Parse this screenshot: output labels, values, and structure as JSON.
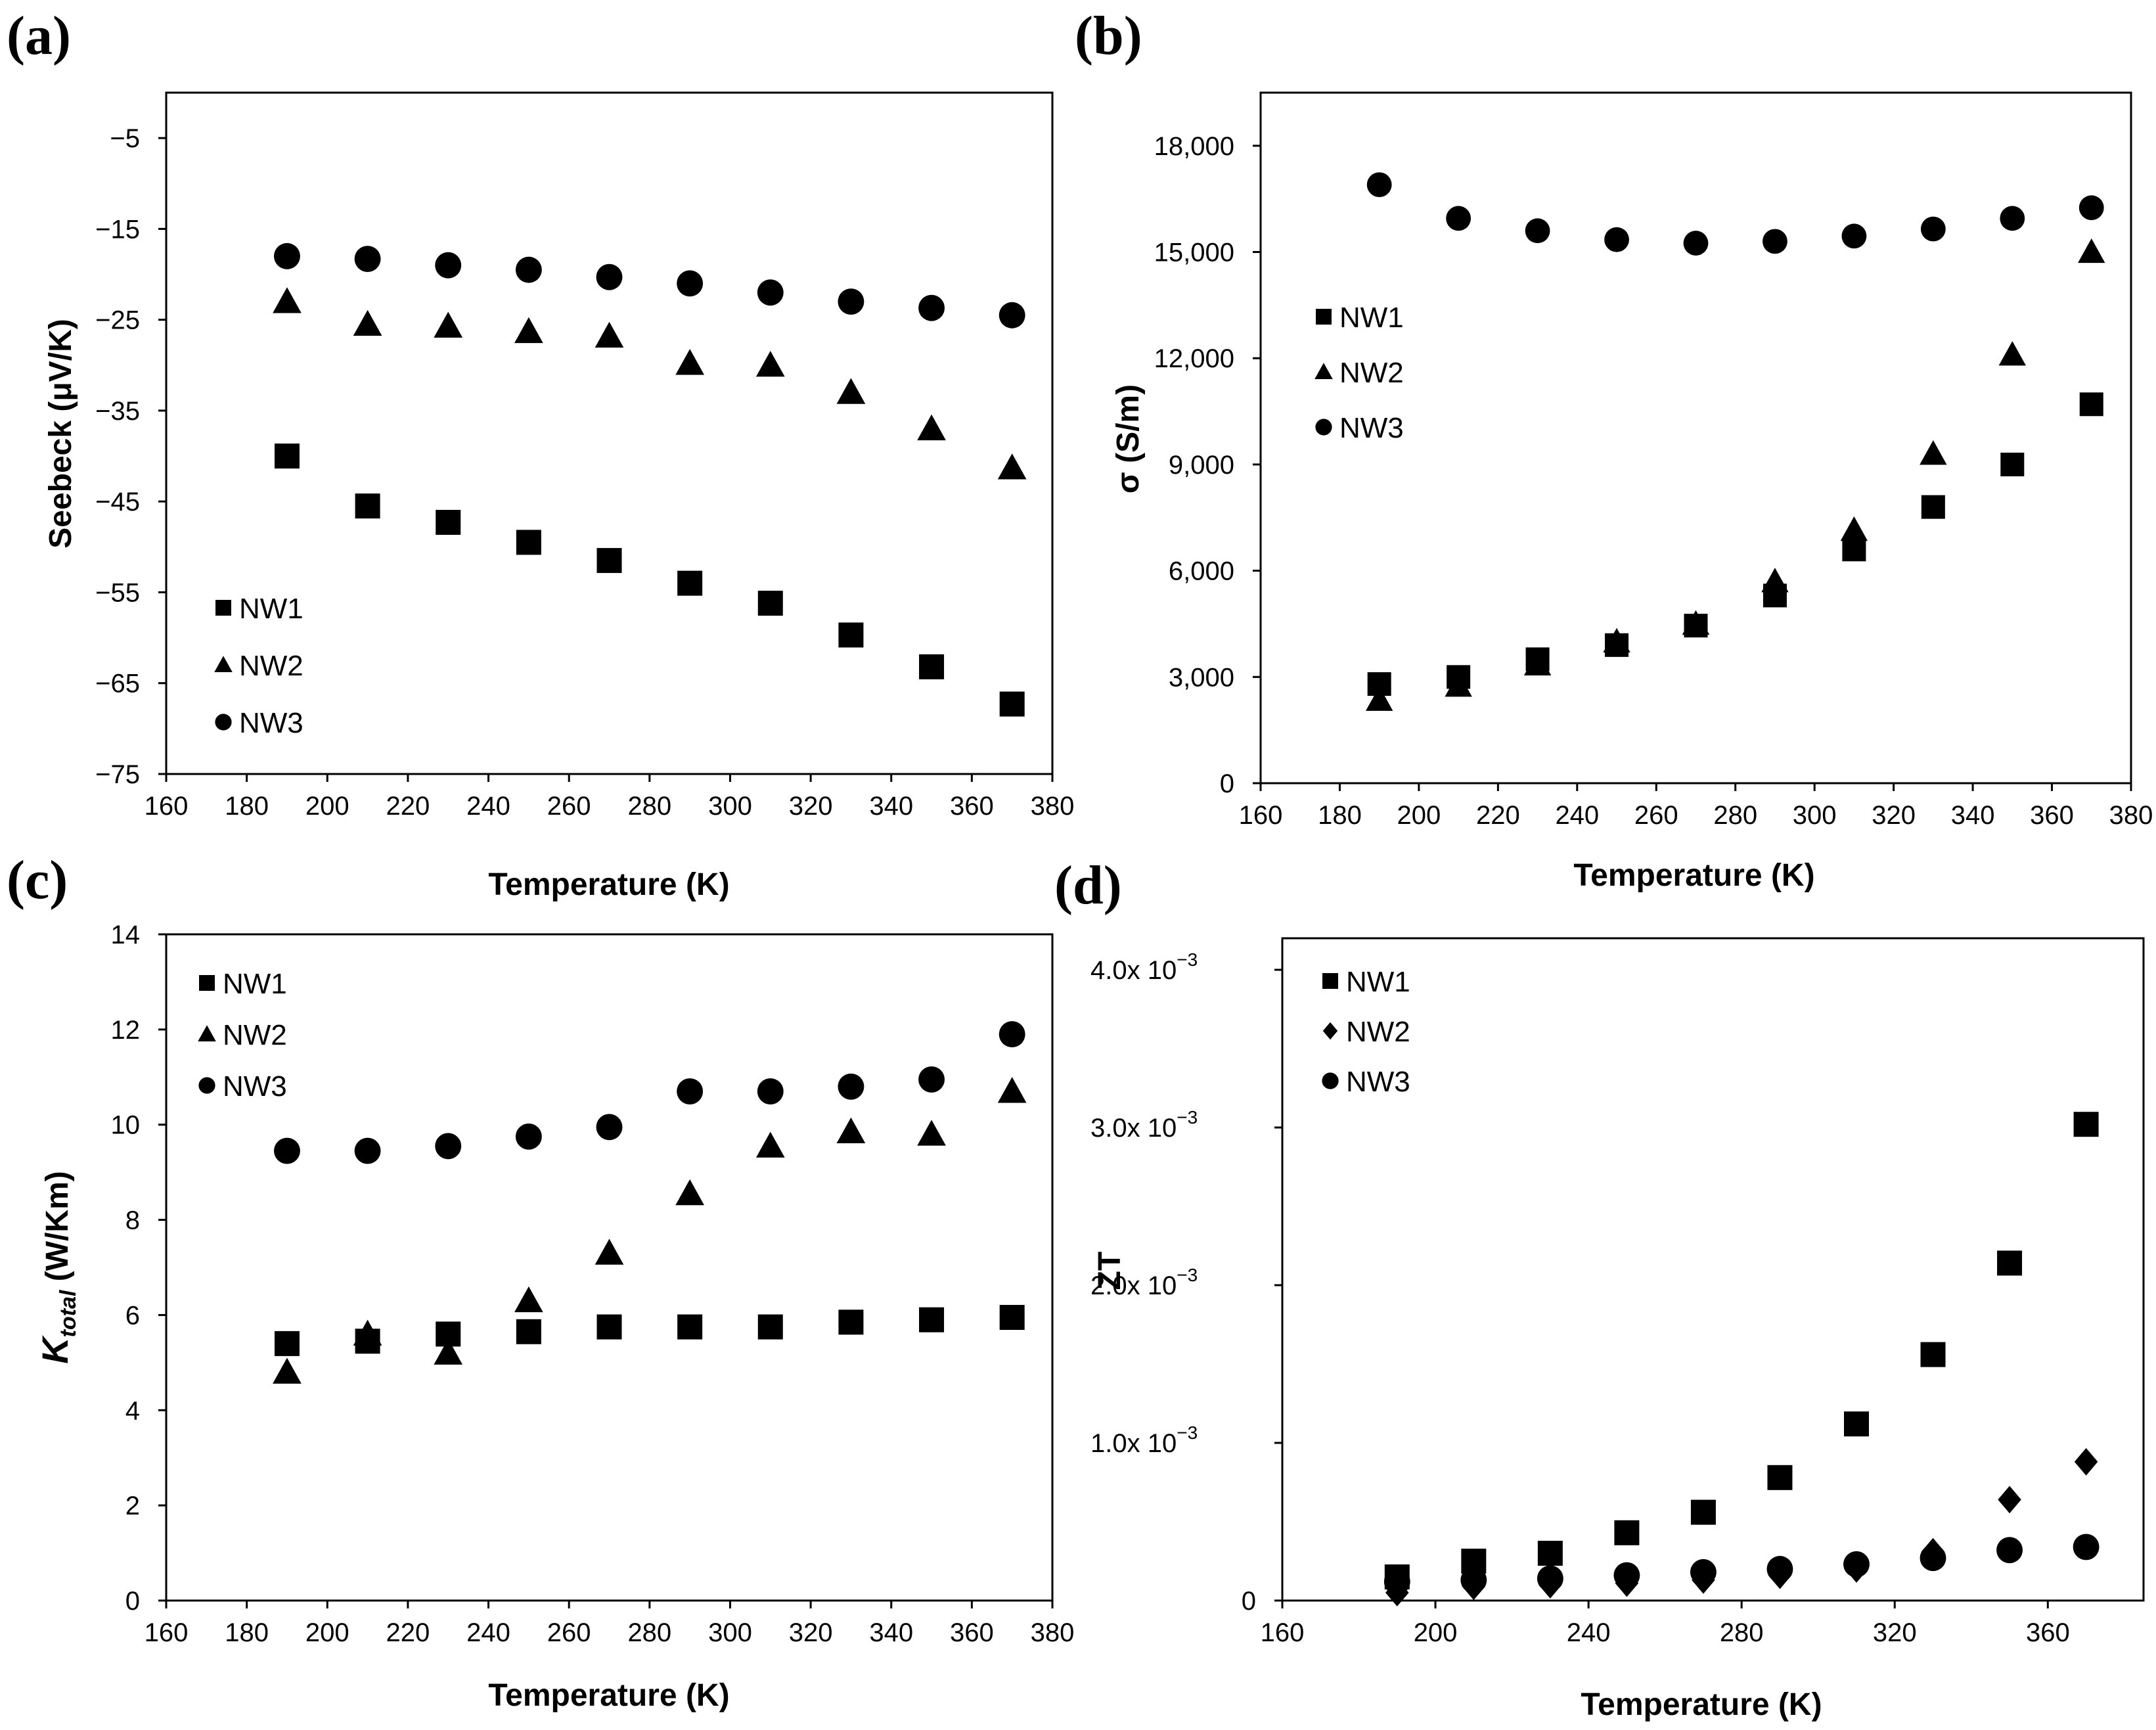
{
  "figure": {
    "panels": [
      {
        "letter": "(a)"
      },
      {
        "letter": "(b)"
      },
      {
        "letter": "(c)"
      },
      {
        "letter": "(d)"
      }
    ]
  },
  "chart_data": [
    {
      "type": "scatter",
      "panel": "(a)",
      "xlabel": "Temperature (K)",
      "ylabel": "Seebeck (μV/K)",
      "xlim": [
        160,
        380
      ],
      "ylim": [
        -75,
        0
      ],
      "xticks": [
        "160",
        "180",
        "200",
        "220",
        "240",
        "260",
        "280",
        "300",
        "320",
        "340",
        "360",
        "380"
      ],
      "yticks": [
        "−75",
        "−65",
        "−55",
        "−45",
        "−35",
        "−25",
        "−15",
        "−5"
      ],
      "legend_position": "bottom-left",
      "x": [
        190,
        210,
        230,
        250,
        270,
        290,
        310,
        330,
        350,
        370
      ],
      "series": [
        {
          "name": "NW1",
          "marker": "square",
          "values": [
            -40,
            -45.5,
            -47.3,
            -49.5,
            -51.5,
            -54,
            -56.2,
            -59.7,
            -63.2,
            -67.3
          ]
        },
        {
          "name": "NW2",
          "marker": "triangle",
          "values": [
            -23,
            -25.5,
            -25.7,
            -26.3,
            -26.8,
            -29.8,
            -30,
            -33,
            -37,
            -41.3
          ]
        },
        {
          "name": "NW3",
          "marker": "circle",
          "values": [
            -18,
            -18.3,
            -19,
            -19.5,
            -20.3,
            -21,
            -22,
            -23,
            -23.7,
            -24.5
          ]
        }
      ]
    },
    {
      "type": "scatter",
      "panel": "(b)",
      "xlabel": "Temperature (K)",
      "ylabel": "σ (S/m)",
      "xlim": [
        160,
        380
      ],
      "ylim": [
        0,
        19500
      ],
      "xticks": [
        "160",
        "180",
        "200",
        "220",
        "240",
        "260",
        "280",
        "300",
        "320",
        "340",
        "360",
        "380"
      ],
      "yticks": [
        "0",
        "3,000",
        "6,000",
        "9,000",
        "12,000",
        "15,000",
        "18,000"
      ],
      "legend_position": "middle-left",
      "x": [
        190,
        210,
        230,
        250,
        270,
        290,
        310,
        330,
        350,
        370
      ],
      "series": [
        {
          "name": "NW1",
          "marker": "square",
          "values": [
            2800,
            3000,
            3500,
            3900,
            4450,
            5300,
            6600,
            7800,
            9000,
            10700
          ]
        },
        {
          "name": "NW2",
          "marker": "triangle",
          "values": [
            2350,
            2750,
            3350,
            4000,
            4500,
            5700,
            7150,
            9300,
            12100,
            15000
          ]
        },
        {
          "name": "NW3",
          "marker": "circle",
          "values": [
            16900,
            15950,
            15600,
            15350,
            15250,
            15300,
            15450,
            15650,
            15950,
            16250
          ]
        }
      ]
    },
    {
      "type": "scatter",
      "panel": "(c)",
      "xlabel": "Temperature (K)",
      "ylabel_main": "K",
      "ylabel_sub": "total",
      "ylabel_unit": " (W/Km)",
      "xlim": [
        160,
        380
      ],
      "ylim": [
        0,
        14
      ],
      "xticks": [
        "160",
        "180",
        "200",
        "220",
        "240",
        "260",
        "280",
        "300",
        "320",
        "340",
        "360",
        "380"
      ],
      "yticks": [
        "0",
        "2",
        "4",
        "6",
        "8",
        "10",
        "12",
        "14"
      ],
      "legend_position": "top-left",
      "x": [
        190,
        210,
        230,
        250,
        270,
        290,
        310,
        330,
        350,
        370
      ],
      "series": [
        {
          "name": "NW1",
          "marker": "square",
          "values": [
            5.4,
            5.45,
            5.6,
            5.65,
            5.75,
            5.75,
            5.75,
            5.85,
            5.9,
            5.95
          ]
        },
        {
          "name": "NW2",
          "marker": "triangle",
          "values": [
            4.8,
            5.6,
            5.2,
            6.3,
            7.3,
            8.55,
            9.55,
            9.85,
            9.8,
            10.7
          ]
        },
        {
          "name": "NW3",
          "marker": "circle",
          "values": [
            9.45,
            9.45,
            9.55,
            9.75,
            9.95,
            10.7,
            10.7,
            10.8,
            10.95,
            11.9
          ]
        }
      ]
    },
    {
      "type": "scatter",
      "panel": "(d)",
      "xlabel": "Temperature (K)",
      "ylabel": "ZT",
      "xlim": [
        160,
        385
      ],
      "ylim": [
        0,
        4.2
      ],
      "y_scale_note": "values in units of 10^-3",
      "xticks": [
        "160",
        "200",
        "240",
        "280",
        "320",
        "360"
      ],
      "yticks": [
        {
          "value": 0,
          "label": "0",
          "exp": ""
        },
        {
          "value": 1,
          "label": "1.0x 10",
          "exp": "−3"
        },
        {
          "value": 2,
          "label": "2.0x 10",
          "exp": "−3"
        },
        {
          "value": 3,
          "label": "3.0x 10",
          "exp": "−3"
        },
        {
          "value": 4,
          "label": "4.0x 10",
          "exp": "−3"
        }
      ],
      "legend_position": "top-left",
      "x": [
        190,
        210,
        230,
        250,
        270,
        290,
        310,
        330,
        350,
        370
      ],
      "series": [
        {
          "name": "NW1",
          "marker": "square",
          "values": [
            0.15,
            0.25,
            0.3,
            0.43,
            0.56,
            0.78,
            1.12,
            1.56,
            2.14,
            3.02
          ]
        },
        {
          "name": "NW2",
          "marker": "diamond",
          "values": [
            0.05,
            0.09,
            0.1,
            0.11,
            0.13,
            0.16,
            0.2,
            0.31,
            0.64,
            0.88
          ]
        },
        {
          "name": "NW3",
          "marker": "circle",
          "values": [
            0.12,
            0.13,
            0.14,
            0.16,
            0.18,
            0.2,
            0.23,
            0.27,
            0.32,
            0.34
          ]
        }
      ]
    }
  ]
}
